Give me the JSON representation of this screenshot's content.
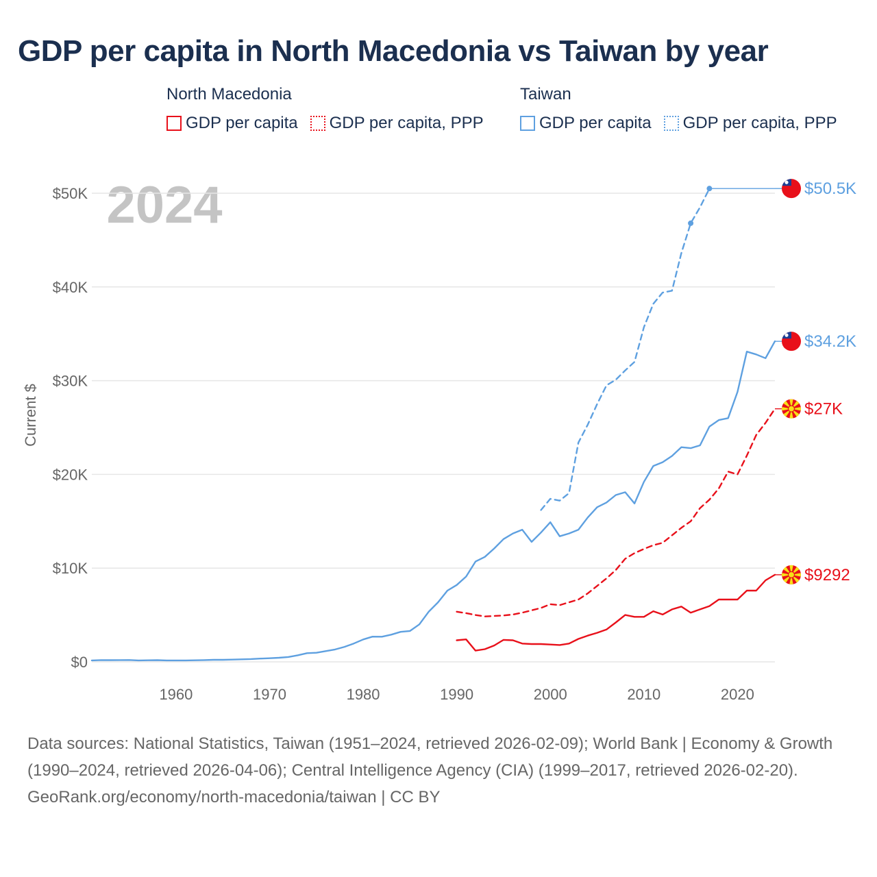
{
  "title": "GDP per capita in North Macedonia vs Taiwan by year",
  "legend": {
    "groups": [
      {
        "country": "North Macedonia",
        "items": [
          "GDP per capita",
          "GDP per capita, PPP"
        ]
      },
      {
        "country": "Taiwan",
        "items": [
          "GDP per capita",
          "GDP per capita, PPP"
        ]
      }
    ]
  },
  "colors": {
    "north_macedonia": "#e8101a",
    "taiwan": "#5ea0e0"
  },
  "footer": {
    "sources": "Data sources: National Statistics, Taiwan (1951–2024, retrieved 2026-02-09); World Bank | Economy & Growth (1990–2024, retrieved 2026-04-06); Central Intelligence Agency (CIA) (1999–2017, retrieved 2026-02-20).",
    "credit": "GeoRank.org/economy/north-macedonia/taiwan | CC BY"
  },
  "chart_data": {
    "type": "line",
    "title": "GDP per capita in North Macedonia vs Taiwan by year",
    "year_label": "2024",
    "xlabel": "",
    "ylabel": "Current $",
    "xlim": [
      1951,
      2024
    ],
    "ylim": [
      0,
      50000
    ],
    "x_ticks": [
      1960,
      1970,
      1980,
      1990,
      2000,
      2010,
      2020
    ],
    "y_ticks": [
      {
        "value": 0,
        "label": "$0"
      },
      {
        "value": 10000,
        "label": "$10K"
      },
      {
        "value": 20000,
        "label": "$20K"
      },
      {
        "value": 30000,
        "label": "$30K"
      },
      {
        "value": 40000,
        "label": "$40K"
      },
      {
        "value": 50000,
        "label": "$50K"
      }
    ],
    "series": [
      {
        "name": "Taiwan GDP per capita, PPP",
        "country": "Taiwan",
        "style": "dashed",
        "color": "#5ea0e0",
        "end_label": "$50.5K",
        "flag": "taiwan",
        "x": [
          1999,
          2000,
          2001,
          2002,
          2003,
          2004,
          2005,
          2006,
          2007,
          2008,
          2009,
          2010,
          2011,
          2012,
          2013,
          2014,
          2015,
          2016,
          2017
        ],
        "values": [
          16200,
          17400,
          17200,
          18000,
          23400,
          25300,
          27500,
          29500,
          30100,
          31100,
          32000,
          35700,
          38200,
          39400,
          39600,
          43600,
          46800,
          48500,
          50500
        ],
        "marker_x": [
          2015,
          2017
        ],
        "carry_to": 2024
      },
      {
        "name": "Taiwan GDP per capita",
        "country": "Taiwan",
        "style": "solid",
        "color": "#5ea0e0",
        "end_label": "$34.2K",
        "flag": "taiwan",
        "x": [
          1951,
          1952,
          1953,
          1954,
          1955,
          1956,
          1957,
          1958,
          1959,
          1960,
          1961,
          1962,
          1963,
          1964,
          1965,
          1966,
          1967,
          1968,
          1969,
          1970,
          1971,
          1972,
          1973,
          1974,
          1975,
          1976,
          1977,
          1978,
          1979,
          1980,
          1981,
          1982,
          1983,
          1984,
          1985,
          1986,
          1987,
          1988,
          1989,
          1990,
          1991,
          1992,
          1993,
          1994,
          1995,
          1996,
          1997,
          1998,
          1999,
          2000,
          2001,
          2002,
          2003,
          2004,
          2005,
          2006,
          2007,
          2008,
          2009,
          2010,
          2011,
          2012,
          2013,
          2014,
          2015,
          2016,
          2017,
          2018,
          2019,
          2020,
          2021,
          2022,
          2023,
          2024
        ],
        "values": [
          150,
          190,
          180,
          190,
          200,
          150,
          170,
          180,
          150,
          150,
          150,
          170,
          190,
          220,
          220,
          240,
          270,
          300,
          350,
          390,
          440,
          520,
          700,
          930,
          970,
          1150,
          1320,
          1600,
          1960,
          2390,
          2690,
          2680,
          2900,
          3200,
          3300,
          4000,
          5350,
          6350,
          7600,
          8200,
          9100,
          10700,
          11200,
          12100,
          13100,
          13700,
          14100,
          12800,
          13800,
          14900,
          13400,
          13700,
          14100,
          15400,
          16500,
          17000,
          17800,
          18100,
          16900,
          19200,
          20900,
          21300,
          21970,
          22900,
          22800,
          23100,
          25100,
          25800,
          26000,
          28800,
          33100,
          32800,
          32400,
          34200
        ]
      },
      {
        "name": "North Macedonia GDP per capita, PPP",
        "country": "North Macedonia",
        "style": "dashed",
        "color": "#e8101a",
        "end_label": "$27K",
        "flag": "north-macedonia",
        "x": [
          1990,
          1991,
          1992,
          1993,
          1994,
          1995,
          1996,
          1997,
          1998,
          1999,
          2000,
          2001,
          2002,
          2003,
          2004,
          2005,
          2006,
          2007,
          2008,
          2009,
          2010,
          2011,
          2012,
          2013,
          2014,
          2015,
          2016,
          2017,
          2018,
          2019,
          2020,
          2021,
          2022,
          2023,
          2024
        ],
        "values": [
          5350,
          5200,
          5000,
          4850,
          4900,
          4950,
          5050,
          5250,
          5500,
          5750,
          6150,
          6050,
          6350,
          6650,
          7300,
          8100,
          8900,
          9800,
          11000,
          11600,
          12050,
          12450,
          12700,
          13500,
          14300,
          15000,
          16400,
          17300,
          18500,
          20300,
          20000,
          22000,
          24200,
          25500,
          27000
        ]
      },
      {
        "name": "North Macedonia GDP per capita",
        "country": "North Macedonia",
        "style": "solid",
        "color": "#e8101a",
        "end_label": "$9292",
        "flag": "north-macedonia",
        "x": [
          1990,
          1991,
          1992,
          1993,
          1994,
          1995,
          1996,
          1997,
          1998,
          1999,
          2000,
          2001,
          2002,
          2003,
          2004,
          2005,
          2006,
          2007,
          2008,
          2009,
          2010,
          2011,
          2012,
          2013,
          2014,
          2015,
          2016,
          2017,
          2018,
          2019,
          2020,
          2021,
          2022,
          2023,
          2024
        ],
        "values": [
          2300,
          2400,
          1200,
          1350,
          1750,
          2350,
          2300,
          1950,
          1900,
          1900,
          1850,
          1800,
          1950,
          2450,
          2800,
          3100,
          3450,
          4200,
          5000,
          4800,
          4800,
          5400,
          5050,
          5600,
          5900,
          5250,
          5600,
          5950,
          6650,
          6650,
          6650,
          7600,
          7600,
          8700,
          9292
        ]
      }
    ]
  }
}
